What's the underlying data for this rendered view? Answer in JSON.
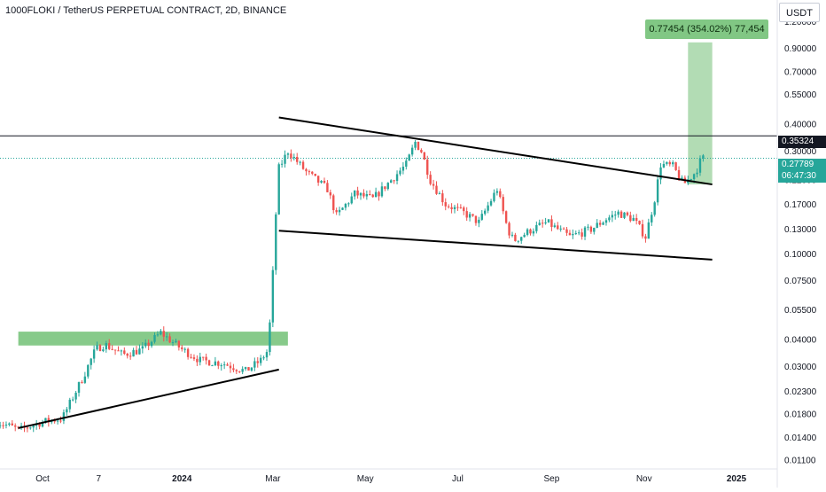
{
  "header": {
    "title": "1000FLOKI / TetherUS PERPETUAL CONTRACT, 2D, BINANCE",
    "currency": "USDT"
  },
  "measure": {
    "label": "0.77454 (354.02%) 77,454"
  },
  "price_tags": {
    "resistance": "0.35324",
    "last_price": "0.27789",
    "countdown": "06:47:30"
  },
  "colors": {
    "up": "#26a69a",
    "down": "#ef5350",
    "zone": "#81c784",
    "projection": "#a5d6a7",
    "trendline": "#000000"
  },
  "chart_data": {
    "type": "candlestick",
    "y_scale": "log",
    "ylim": [
      0.0105,
      1.4
    ],
    "y_ticks": [
      "1.20000",
      "0.90000",
      "0.70000",
      "0.55000",
      "0.40000",
      "0.30000",
      "0.22000",
      "0.17000",
      "0.13000",
      "0.10000",
      "0.07500",
      "0.05500",
      "0.04000",
      "0.03000",
      "0.02300",
      "0.01800",
      "0.01400",
      "0.01100"
    ],
    "y_tick_values": [
      1.2,
      0.9,
      0.7,
      0.55,
      0.4,
      0.3,
      0.22,
      0.17,
      0.13,
      0.1,
      0.075,
      0.055,
      0.04,
      0.03,
      0.023,
      0.018,
      0.014,
      0.011
    ],
    "x_ticks": [
      {
        "label": "Oct",
        "date": "2023-10-01",
        "bold": false
      },
      {
        "label": "7",
        "date": "2023-11-07",
        "bold": false
      },
      {
        "label": "2024",
        "date": "2024-01-01",
        "bold": true
      },
      {
        "label": "Mar",
        "date": "2024-03-01",
        "bold": false
      },
      {
        "label": "May",
        "date": "2024-05-01",
        "bold": false
      },
      {
        "label": "Jul",
        "date": "2024-07-01",
        "bold": false
      },
      {
        "label": "Sep",
        "date": "2024-09-01",
        "bold": false
      },
      {
        "label": "Nov",
        "date": "2024-11-01",
        "bold": false
      },
      {
        "label": "2025",
        "date": "2025-01-01",
        "bold": true
      }
    ],
    "price_path": [
      [
        "2023-09-01",
        0.0168
      ],
      [
        "2023-09-18",
        0.0152
      ],
      [
        "2023-10-02",
        0.0165
      ],
      [
        "2023-10-16",
        0.0172
      ],
      [
        "2023-10-30",
        0.027
      ],
      [
        "2023-11-07",
        0.036
      ],
      [
        "2023-11-13",
        0.038
      ],
      [
        "2023-11-25",
        0.034
      ],
      [
        "2023-12-08",
        0.036
      ],
      [
        "2023-12-20",
        0.043
      ],
      [
        "2024-01-03",
        0.036
      ],
      [
        "2024-01-15",
        0.032
      ],
      [
        "2024-01-30",
        0.031
      ],
      [
        "2024-02-14",
        0.0285
      ],
      [
        "2024-02-24",
        0.032
      ],
      [
        "2024-02-28",
        0.035
      ],
      [
        "2024-03-02",
        0.055
      ],
      [
        "2024-03-04",
        0.12
      ],
      [
        "2024-03-07",
        0.25
      ],
      [
        "2024-03-13",
        0.3
      ],
      [
        "2024-03-25",
        0.24
      ],
      [
        "2024-04-08",
        0.2
      ],
      [
        "2024-04-14",
        0.15
      ],
      [
        "2024-04-26",
        0.19
      ],
      [
        "2024-05-08",
        0.18
      ],
      [
        "2024-05-20",
        0.22
      ],
      [
        "2024-05-30",
        0.26
      ],
      [
        "2024-06-05",
        0.33
      ],
      [
        "2024-06-09",
        0.3
      ],
      [
        "2024-06-15",
        0.22
      ],
      [
        "2024-06-25",
        0.17
      ],
      [
        "2024-07-07",
        0.155
      ],
      [
        "2024-07-17",
        0.14
      ],
      [
        "2024-07-29",
        0.2
      ],
      [
        "2024-08-05",
        0.13
      ],
      [
        "2024-08-09",
        0.115
      ],
      [
        "2024-08-21",
        0.13
      ],
      [
        "2024-08-31",
        0.14
      ],
      [
        "2024-09-07",
        0.13
      ],
      [
        "2024-09-15",
        0.12
      ],
      [
        "2024-09-29",
        0.13
      ],
      [
        "2024-10-09",
        0.145
      ],
      [
        "2024-10-17",
        0.155
      ],
      [
        "2024-10-27",
        0.145
      ],
      [
        "2024-11-04",
        0.12
      ],
      [
        "2024-11-10",
        0.18
      ],
      [
        "2024-11-14",
        0.26
      ],
      [
        "2024-11-22",
        0.255
      ],
      [
        "2024-11-29",
        0.21
      ],
      [
        "2024-12-07",
        0.24
      ],
      [
        "2024-12-11",
        0.278
      ]
    ],
    "annotations": {
      "supply_zone": {
        "from": "2023-09-15",
        "to": "2024-03-01",
        "low": 0.0375,
        "high": 0.0435
      },
      "projection_box": {
        "from": "2024-11-30",
        "to": "2024-12-16",
        "low": 0.21,
        "high": 0.96
      },
      "resistance_line": 0.35324,
      "last_price_line": 0.27789,
      "trendlines": [
        {
          "from": [
            "2023-09-15",
            0.0155
          ],
          "to": [
            "2024-03-05",
            0.029
          ]
        },
        {
          "from": [
            "2024-03-05",
            0.43
          ],
          "to": [
            "2024-12-16",
            0.21
          ]
        },
        {
          "from": [
            "2024-03-05",
            0.128
          ],
          "to": [
            "2024-12-16",
            0.094
          ]
        }
      ]
    }
  }
}
